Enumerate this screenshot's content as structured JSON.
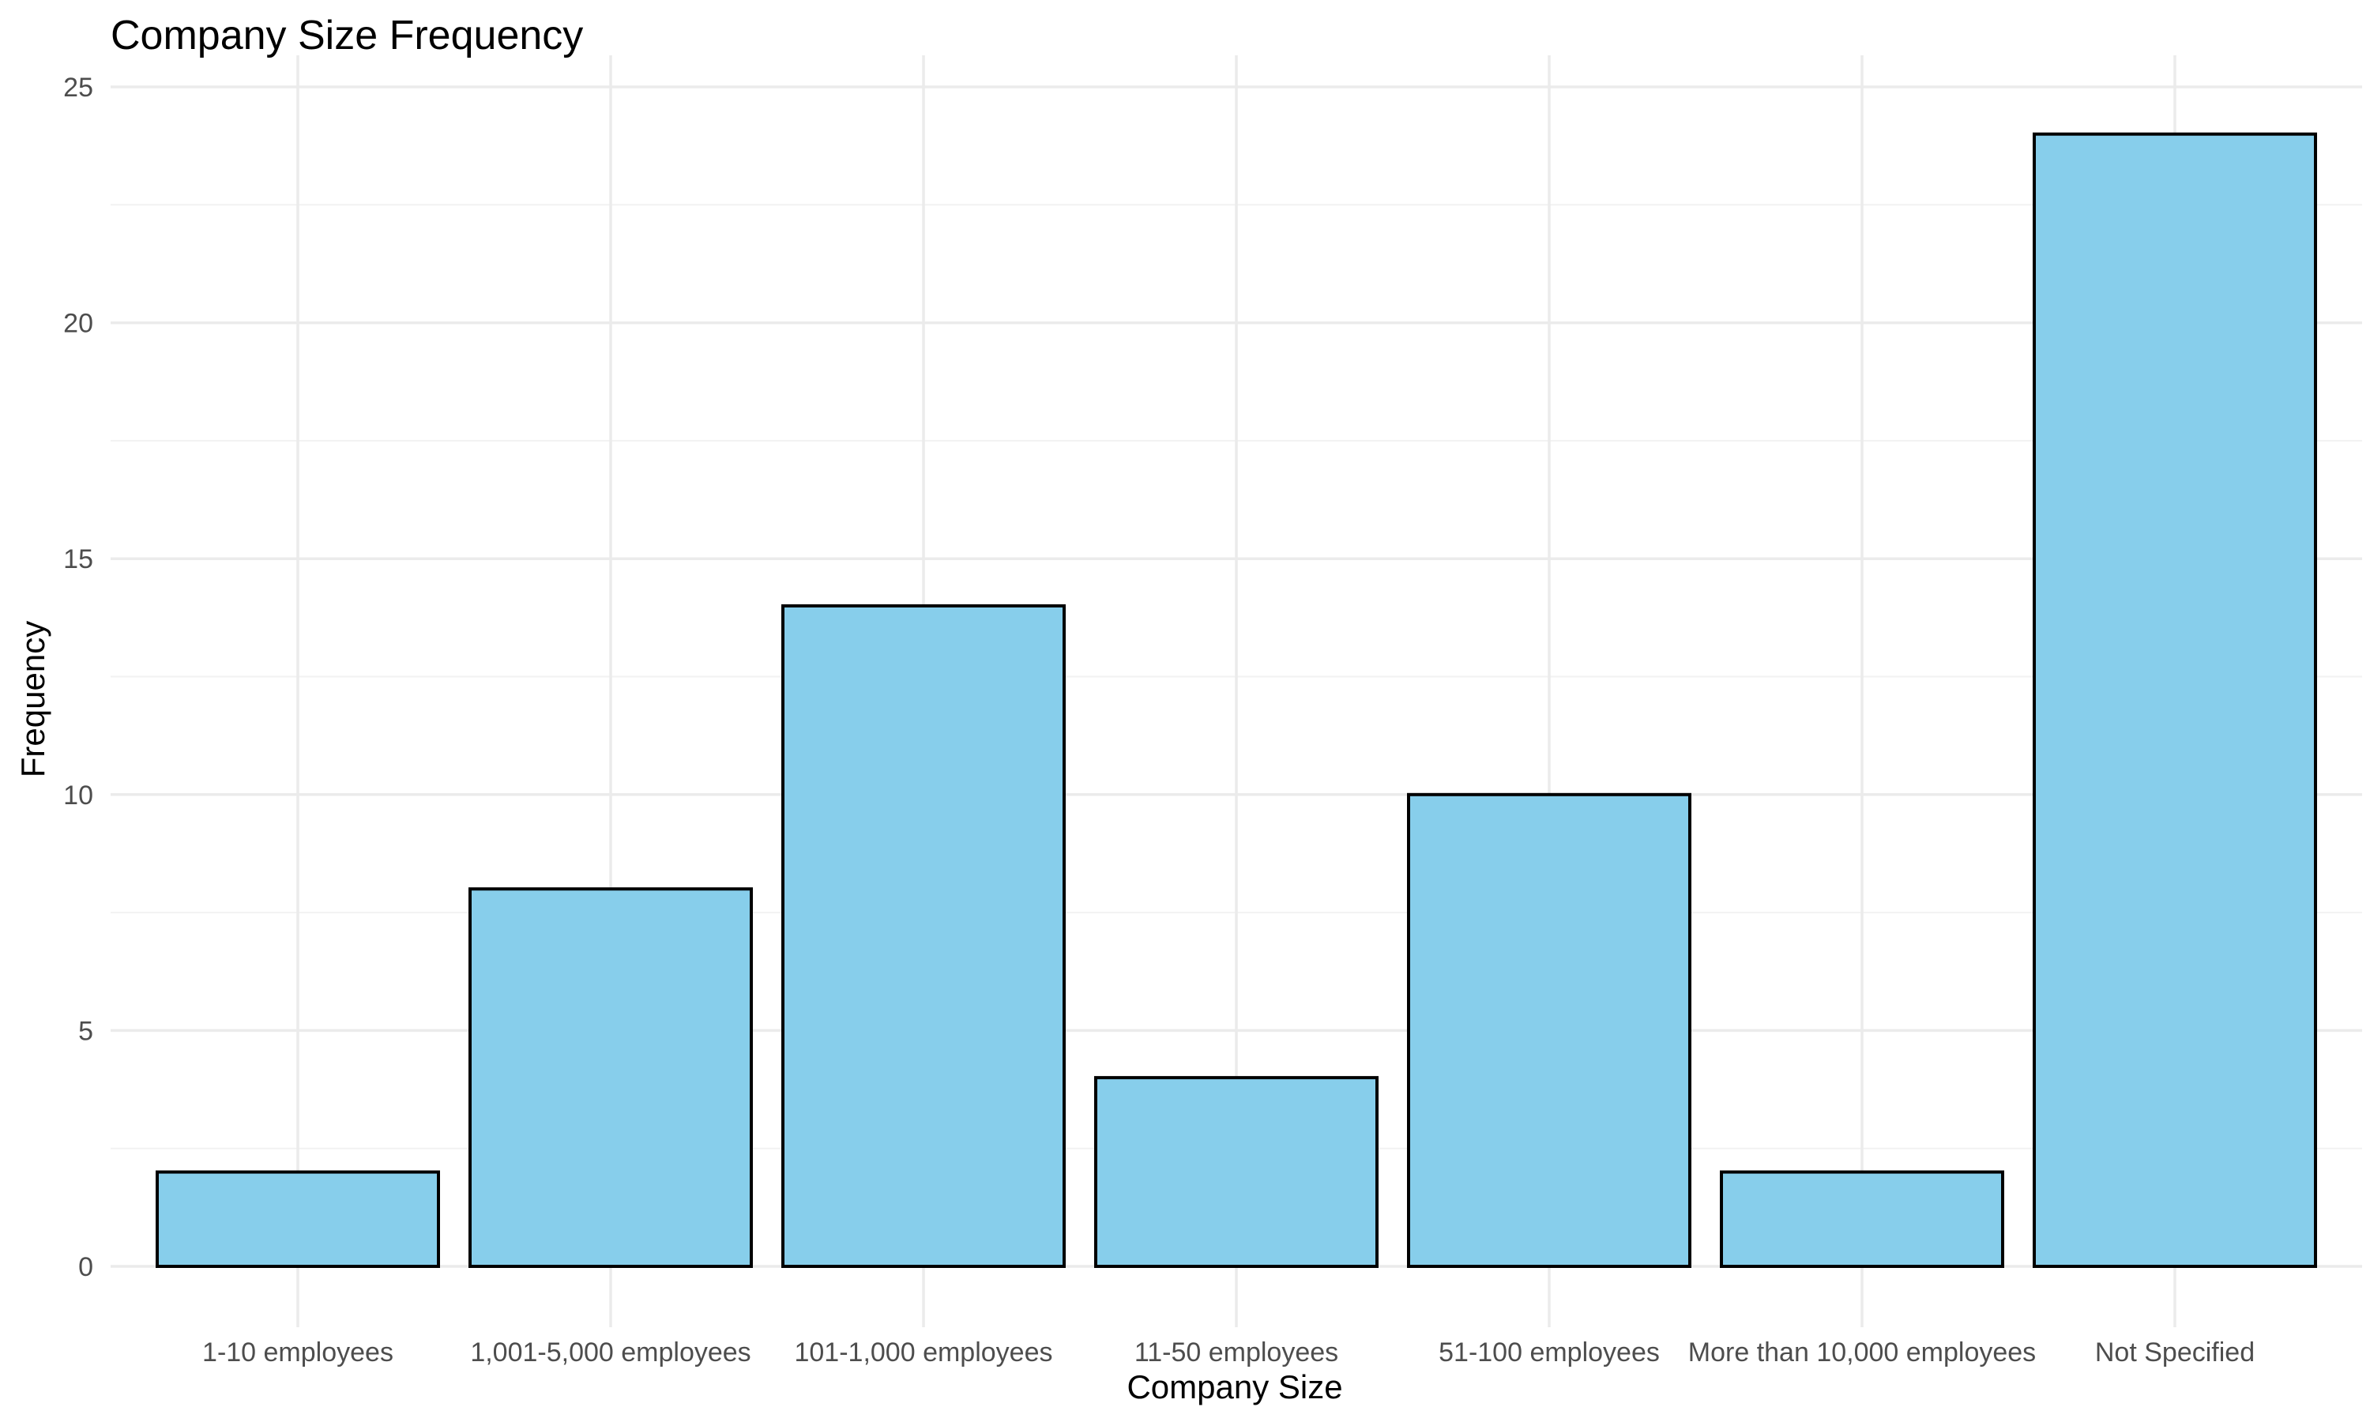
{
  "chart_data": {
    "type": "bar",
    "title": "Company Size Frequency",
    "xlabel": "Company Size",
    "ylabel": "Frequency",
    "categories": [
      "1-10 employees",
      "1,001-5,000 employees",
      "101-1,000 employees",
      "11-50 employees",
      "51-100 employees",
      "More than 10,000 employees",
      "Not Specified"
    ],
    "values": [
      2,
      8,
      14,
      4,
      10,
      2,
      24
    ],
    "ylim": [
      0,
      25
    ],
    "yticks": [
      0,
      5,
      10,
      15,
      20,
      25
    ],
    "grid": true,
    "legend": "none",
    "bar_color": "#87ceeb",
    "bar_outline": "#000000"
  }
}
